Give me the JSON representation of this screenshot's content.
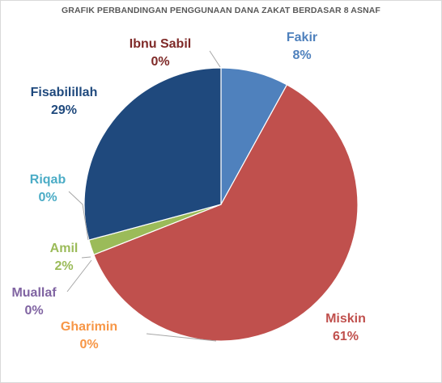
{
  "chart_data": {
    "type": "pie",
    "title": "GRAFIK PERBANDINGAN PENGGUNAAN DANA ZAKAT BERDASAR 8 ASNAF",
    "legend": "none",
    "data_labels": "category name and percentage",
    "slices": [
      {
        "name": "Fakir",
        "percent_label": "8%",
        "value": 8,
        "color": "#4F81BD"
      },
      {
        "name": "Miskin",
        "percent_label": "61%",
        "value": 61,
        "color": "#C0504D"
      },
      {
        "name": "Gharimin",
        "percent_label": "0%",
        "value": 0,
        "color": "#F79646"
      },
      {
        "name": "Muallaf",
        "percent_label": "0%",
        "value": 0,
        "color": "#8064A2"
      },
      {
        "name": "Amil",
        "percent_label": "2%",
        "value": 1.8,
        "color": "#9BBB59"
      },
      {
        "name": "Riqab",
        "percent_label": "0%",
        "value": 0,
        "color": "#4BACC6"
      },
      {
        "name": "Fisabilillah",
        "percent_label": "29%",
        "value": 29.2,
        "color": "#1F497D"
      },
      {
        "name": "Ibnu Sabil",
        "percent_label": "0%",
        "value": 0,
        "color": "#7F2A28"
      }
    ]
  }
}
